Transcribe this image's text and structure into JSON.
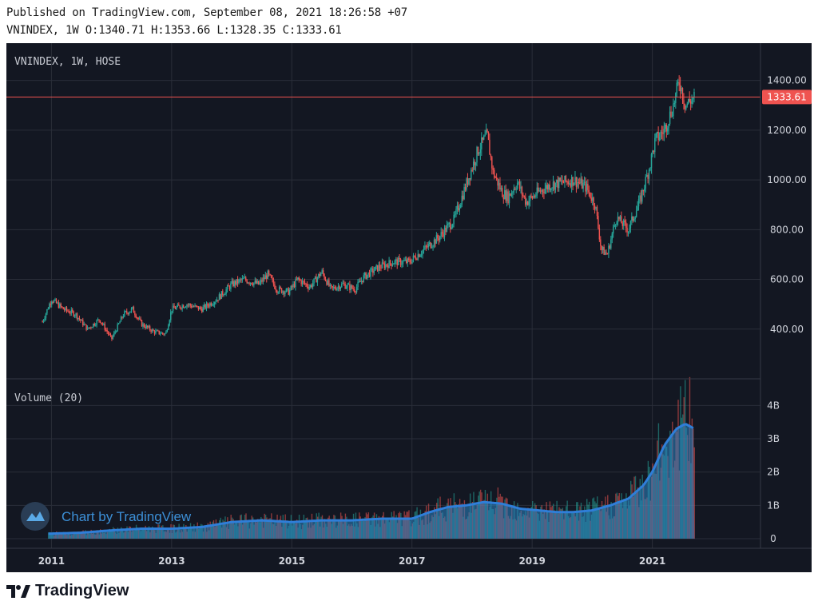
{
  "header": {
    "published": "Published on TradingView.com, September 08, 2021 18:26:58 +07",
    "ohlc": "VNINDEX, 1W O:1340.71 H:1353.66 L:1328.35 C:1333.61"
  },
  "colors": {
    "background": "#131722",
    "grid": "#2a2e39",
    "up": "#26a69a",
    "down": "#ef5350",
    "volume_ma": "#2f7ed8",
    "volume_fill": "#2b85c4",
    "last_price": "#ef5350",
    "watermark": "#3c8fd6"
  },
  "chart_data": {
    "type": "line",
    "title": "VNINDEX, 1W, HOSE",
    "x_ticks": [
      "2011",
      "2013",
      "2015",
      "2017",
      "2019",
      "2021"
    ],
    "price_axis": {
      "ticks": [
        "400.00",
        "600.00",
        "800.00",
        "1000.00",
        "1200.00",
        "1400.00"
      ],
      "ylim": [
        200,
        1550
      ]
    },
    "last_price": {
      "value": 1333.61,
      "label": "1333.61"
    },
    "series": [
      {
        "name": "VNINDEX",
        "x": [
          2010.85,
          2011.0,
          2011.2,
          2011.4,
          2011.6,
          2011.8,
          2012.0,
          2012.2,
          2012.35,
          2012.5,
          2012.7,
          2012.9,
          2013.0,
          2013.25,
          2013.5,
          2013.75,
          2014.0,
          2014.2,
          2014.45,
          2014.6,
          2014.75,
          2014.95,
          2015.1,
          2015.3,
          2015.5,
          2015.65,
          2015.85,
          2016.05,
          2016.2,
          2016.45,
          2016.7,
          2016.95,
          2017.2,
          2017.45,
          2017.7,
          2017.9,
          2018.1,
          2018.25,
          2018.35,
          2018.5,
          2018.6,
          2018.75,
          2018.9,
          2019.1,
          2019.3,
          2019.5,
          2019.7,
          2019.9,
          2020.05,
          2020.15,
          2020.25,
          2020.4,
          2020.6,
          2020.8,
          2020.95,
          2021.05,
          2021.2,
          2021.35,
          2021.45,
          2021.55,
          2021.7
        ],
        "y": [
          430,
          520,
          480,
          460,
          400,
          440,
          360,
          460,
          480,
          420,
          390,
          380,
          480,
          500,
          480,
          520,
          580,
          600,
          580,
          620,
          560,
          550,
          600,
          570,
          630,
          560,
          580,
          560,
          610,
          650,
          670,
          670,
          720,
          770,
          840,
          980,
          1120,
          1180,
          1030,
          950,
          930,
          990,
          910,
          950,
          980,
          990,
          1000,
          970,
          900,
          720,
          700,
          850,
          800,
          920,
          1050,
          1160,
          1200,
          1300,
          1400,
          1300,
          1333.61
        ]
      }
    ],
    "volume_panel": {
      "title": "Volume (20)",
      "ticks": [
        "0",
        "1B",
        "2B",
        "3B",
        "4B"
      ],
      "ylim": [
        0,
        4.8
      ],
      "x": [
        2010.95,
        2011.5,
        2012.0,
        2012.5,
        2013.0,
        2013.5,
        2014.0,
        2014.5,
        2015.0,
        2015.5,
        2016.0,
        2016.5,
        2017.0,
        2017.3,
        2017.6,
        2017.9,
        2018.2,
        2018.5,
        2018.8,
        2019.1,
        2019.4,
        2019.7,
        2020.0,
        2020.3,
        2020.6,
        2020.85,
        2021.0,
        2021.2,
        2021.4,
        2021.55,
        2021.7
      ],
      "ma": [
        0.15,
        0.18,
        0.25,
        0.3,
        0.3,
        0.35,
        0.5,
        0.55,
        0.5,
        0.55,
        0.55,
        0.6,
        0.6,
        0.8,
        0.95,
        1.0,
        1.1,
        1.05,
        0.9,
        0.85,
        0.8,
        0.8,
        0.85,
        1.0,
        1.2,
        1.6,
        2.0,
        2.8,
        3.3,
        3.45,
        3.3
      ]
    }
  },
  "watermark": {
    "text": "Chart by TradingView"
  },
  "footer": {
    "brand": "TradingView"
  }
}
